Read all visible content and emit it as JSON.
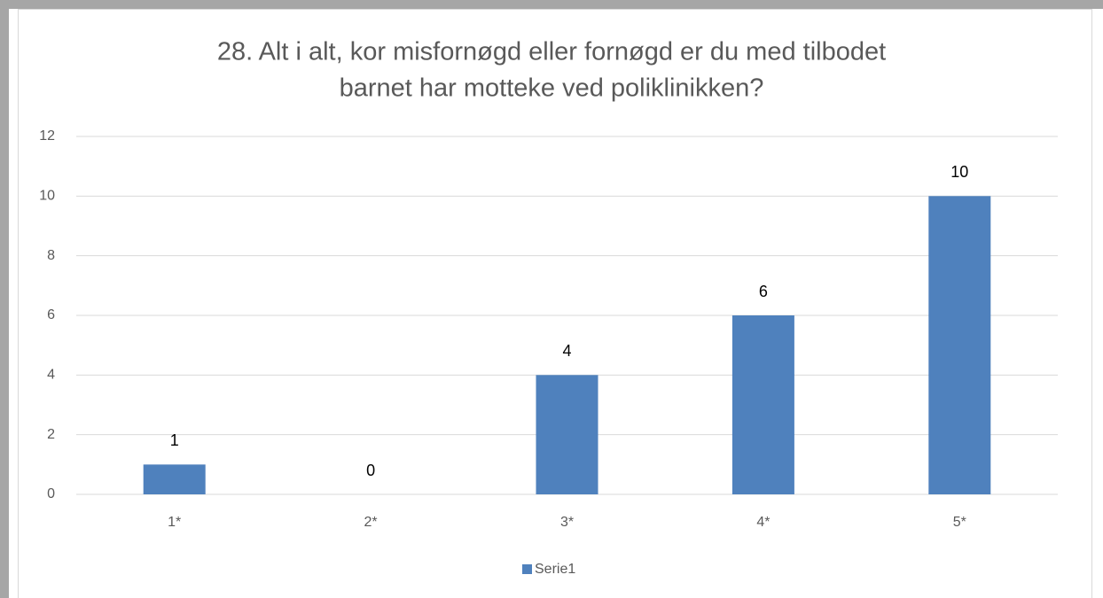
{
  "chart_data": {
    "type": "bar",
    "title": [
      "28. Alt i alt, kor misfornøgd eller fornøgd er du med tilbodet",
      "barnet har motteke ved poliklinikken?"
    ],
    "categories": [
      "1*",
      "2*",
      "3*",
      "4*",
      "5*"
    ],
    "series": [
      {
        "name": "Serie1",
        "color": "#4f81bd",
        "values": [
          1,
          0,
          4,
          6,
          10
        ]
      }
    ],
    "ylim": [
      0,
      12
    ],
    "yticks": [
      0,
      2,
      4,
      6,
      8,
      10,
      12
    ],
    "grid": true,
    "legend": "bottom"
  }
}
